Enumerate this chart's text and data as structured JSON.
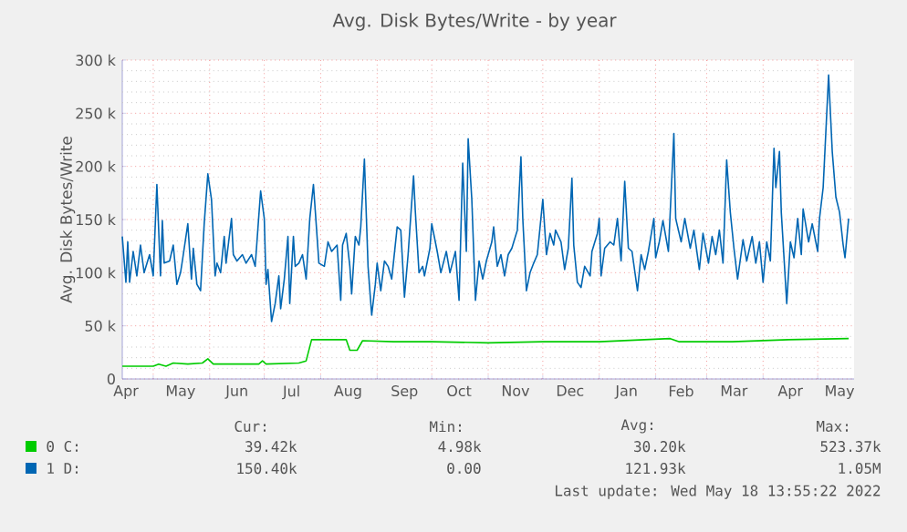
{
  "chart_data": {
    "type": "line",
    "title": "Avg. Disk Bytes/Write - by year",
    "ylabel": "Avg. Disk Bytes/Write",
    "xlim": [
      "2021-04-14",
      "2022-05-21"
    ],
    "ylim": [
      0,
      300000
    ],
    "xticks": [
      {
        "value": "2021-04-16",
        "label": "Apr"
      },
      {
        "value": "2021-05-01",
        "label": null
      },
      {
        "value": "2021-05-16",
        "label": "May"
      },
      {
        "value": "2021-06-01",
        "label": null
      },
      {
        "value": "2021-06-16",
        "label": "Jun"
      },
      {
        "value": "2021-07-01",
        "label": null
      },
      {
        "value": "2021-07-16",
        "label": "Jul"
      },
      {
        "value": "2021-08-01",
        "label": null
      },
      {
        "value": "2021-08-16",
        "label": "Aug"
      },
      {
        "value": "2021-09-01",
        "label": null
      },
      {
        "value": "2021-09-16",
        "label": "Sep"
      },
      {
        "value": "2021-10-01",
        "label": null
      },
      {
        "value": "2021-10-16",
        "label": "Oct"
      },
      {
        "value": "2021-11-01",
        "label": null
      },
      {
        "value": "2021-11-16",
        "label": "Nov"
      },
      {
        "value": "2021-12-01",
        "label": null
      },
      {
        "value": "2021-12-16",
        "label": "Dec"
      },
      {
        "value": "2022-01-01",
        "label": null
      },
      {
        "value": "2022-01-16",
        "label": "Jan"
      },
      {
        "value": "2022-02-01",
        "label": null
      },
      {
        "value": "2022-02-15",
        "label": "Feb"
      },
      {
        "value": "2022-03-01",
        "label": null
      },
      {
        "value": "2022-03-16",
        "label": "Mar"
      },
      {
        "value": "2022-04-01",
        "label": null
      },
      {
        "value": "2022-04-16",
        "label": "Apr"
      },
      {
        "value": "2022-05-01",
        "label": null
      },
      {
        "value": "2022-05-13",
        "label": "May"
      }
    ],
    "yticks": [
      {
        "value": 0,
        "label": "0"
      },
      {
        "value": 10000,
        "label": null
      },
      {
        "value": 20000,
        "label": null
      },
      {
        "value": 30000,
        "label": null
      },
      {
        "value": 40000,
        "label": null
      },
      {
        "value": 50000,
        "label": "50 k"
      },
      {
        "value": 60000,
        "label": null
      },
      {
        "value": 70000,
        "label": null
      },
      {
        "value": 80000,
        "label": null
      },
      {
        "value": 90000,
        "label": null
      },
      {
        "value": 100000,
        "label": "100 k"
      },
      {
        "value": 110000,
        "label": null
      },
      {
        "value": 120000,
        "label": null
      },
      {
        "value": 130000,
        "label": null
      },
      {
        "value": 140000,
        "label": null
      },
      {
        "value": 150000,
        "label": "150 k"
      },
      {
        "value": 160000,
        "label": null
      },
      {
        "value": 170000,
        "label": null
      },
      {
        "value": 180000,
        "label": null
      },
      {
        "value": 190000,
        "label": null
      },
      {
        "value": 200000,
        "label": "200 k"
      },
      {
        "value": 210000,
        "label": null
      },
      {
        "value": 220000,
        "label": null
      },
      {
        "value": 230000,
        "label": null
      },
      {
        "value": 240000,
        "label": null
      },
      {
        "value": 250000,
        "label": "250 k"
      },
      {
        "value": 260000,
        "label": null
      },
      {
        "value": 270000,
        "label": null
      },
      {
        "value": 280000,
        "label": null
      },
      {
        "value": 290000,
        "label": null
      },
      {
        "value": 300000,
        "label": "300 k"
      }
    ],
    "grid": true,
    "legend": "bottom",
    "series": [
      {
        "name": "0 C:",
        "color": "#00cc00",
        "x": [
          "2021-04-14",
          "2021-05-01",
          "2021-05-04",
          "2021-05-08",
          "2021-05-12",
          "2021-05-20",
          "2021-05-28",
          "2021-05-31",
          "2021-06-03",
          "2021-06-28",
          "2021-06-30",
          "2021-07-02",
          "2021-07-20",
          "2021-07-24",
          "2021-07-27",
          "2021-08-15",
          "2021-08-17",
          "2021-08-21",
          "2021-08-24",
          "2021-09-10",
          "2021-10-01",
          "2021-11-01",
          "2021-12-01",
          "2022-01-01",
          "2022-02-09",
          "2022-02-14",
          "2022-03-15",
          "2022-04-15",
          "2022-05-18"
        ],
        "values": [
          12000,
          12000,
          14000,
          12000,
          15000,
          14000,
          15000,
          19000,
          14000,
          14000,
          17000,
          14000,
          15000,
          17000,
          37000,
          37000,
          27000,
          27000,
          36000,
          35000,
          35000,
          34000,
          35000,
          35000,
          38000,
          35000,
          35000,
          37000,
          38000
        ]
      },
      {
        "name": "1 D:",
        "color": "#0066b3",
        "x": [
          "2021-04-14",
          "2021-04-16",
          "2021-04-17",
          "2021-04-18",
          "2021-04-20",
          "2021-04-22",
          "2021-04-24",
          "2021-04-26",
          "2021-04-29",
          "2021-05-01",
          "2021-05-03",
          "2021-05-05",
          "2021-05-06",
          "2021-05-07",
          "2021-05-10",
          "2021-05-12",
          "2021-05-14",
          "2021-05-16",
          "2021-05-17",
          "2021-05-20",
          "2021-05-22",
          "2021-05-23",
          "2021-05-25",
          "2021-05-27",
          "2021-05-29",
          "2021-05-31",
          "2021-06-02",
          "2021-06-04",
          "2021-06-05",
          "2021-06-07",
          "2021-06-09",
          "2021-06-10",
          "2021-06-13",
          "2021-06-14",
          "2021-06-16",
          "2021-06-19",
          "2021-06-21",
          "2021-06-24",
          "2021-06-26",
          "2021-06-29",
          "2021-07-01",
          "2021-07-02",
          "2021-07-03",
          "2021-07-05",
          "2021-07-07",
          "2021-07-09",
          "2021-07-10",
          "2021-07-12",
          "2021-07-14",
          "2021-07-15",
          "2021-07-17",
          "2021-07-18",
          "2021-07-20",
          "2021-07-22",
          "2021-07-24",
          "2021-07-26",
          "2021-07-28",
          "2021-07-30",
          "2021-07-31",
          "2021-08-03",
          "2021-08-05",
          "2021-08-07",
          "2021-08-10",
          "2021-08-12",
          "2021-08-13",
          "2021-08-15",
          "2021-08-17",
          "2021-08-18",
          "2021-08-20",
          "2021-08-22",
          "2021-08-23",
          "2021-08-25",
          "2021-08-27",
          "2021-08-29",
          "2021-08-31",
          "2021-09-01",
          "2021-09-03",
          "2021-09-05",
          "2021-09-07",
          "2021-09-09",
          "2021-09-12",
          "2021-09-14",
          "2021-09-16",
          "2021-09-18",
          "2021-09-21",
          "2021-09-22",
          "2021-09-24",
          "2021-09-26",
          "2021-09-27",
          "2021-09-30",
          "2021-10-01",
          "2021-10-04",
          "2021-10-06",
          "2021-10-09",
          "2021-10-11",
          "2021-10-14",
          "2021-10-16",
          "2021-10-18",
          "2021-10-20",
          "2021-10-21",
          "2021-10-23",
          "2021-10-25",
          "2021-10-27",
          "2021-10-29",
          "2021-10-31",
          "2021-11-03",
          "2021-11-04",
          "2021-11-06",
          "2021-11-08",
          "2021-11-10",
          "2021-11-12",
          "2021-11-14",
          "2021-11-17",
          "2021-11-19",
          "2021-11-20",
          "2021-11-22",
          "2021-11-24",
          "2021-11-26",
          "2021-11-28",
          "2021-12-01",
          "2021-12-03",
          "2021-12-05",
          "2021-12-07",
          "2021-12-08",
          "2021-12-11",
          "2021-12-13",
          "2021-12-15",
          "2021-12-17",
          "2021-12-18",
          "2021-12-20",
          "2021-12-22",
          "2021-12-24",
          "2021-12-27",
          "2021-12-28",
          "2021-12-31",
          "2022-01-01",
          "2022-01-02",
          "2022-01-04",
          "2022-01-07",
          "2022-01-09",
          "2022-01-11",
          "2022-01-13",
          "2022-01-15",
          "2022-01-17",
          "2022-01-19",
          "2022-01-22",
          "2022-01-24",
          "2022-01-26",
          "2022-01-28",
          "2022-01-31",
          "2022-02-01",
          "2022-02-03",
          "2022-02-05",
          "2022-02-08",
          "2022-02-11",
          "2022-02-12",
          "2022-02-15",
          "2022-02-17",
          "2022-02-20",
          "2022-02-22",
          "2022-02-25",
          "2022-02-27",
          "2022-03-02",
          "2022-03-04",
          "2022-03-06",
          "2022-03-08",
          "2022-03-10",
          "2022-03-12",
          "2022-03-14",
          "2022-03-16",
          "2022-03-18",
          "2022-03-21",
          "2022-03-23",
          "2022-03-26",
          "2022-03-28",
          "2022-03-30",
          "2022-04-01",
          "2022-04-03",
          "2022-04-05",
          "2022-04-07",
          "2022-04-08",
          "2022-04-10",
          "2022-04-11",
          "2022-04-14",
          "2022-04-16",
          "2022-04-18",
          "2022-04-20",
          "2022-04-22",
          "2022-04-23",
          "2022-04-26",
          "2022-04-28",
          "2022-05-01",
          "2022-05-02",
          "2022-05-04",
          "2022-05-07",
          "2022-05-09",
          "2022-05-11",
          "2022-05-13",
          "2022-05-15",
          "2022-05-16",
          "2022-05-18"
        ],
        "values": [
          134000,
          91000,
          129000,
          91000,
          120000,
          97000,
          126000,
          100000,
          117000,
          97000,
          183000,
          97000,
          149000,
          109000,
          111000,
          126000,
          89000,
          100000,
          111000,
          146000,
          94000,
          123000,
          89000,
          83000,
          146000,
          193000,
          169000,
          97000,
          109000,
          100000,
          134000,
          109000,
          151000,
          117000,
          111000,
          117000,
          109000,
          117000,
          106000,
          177000,
          151000,
          89000,
          103000,
          54000,
          71000,
          97000,
          66000,
          94000,
          134000,
          71000,
          134000,
          106000,
          109000,
          117000,
          94000,
          151000,
          183000,
          134000,
          109000,
          106000,
          129000,
          120000,
          126000,
          74000,
          126000,
          137000,
          106000,
          80000,
          134000,
          126000,
          143000,
          207000,
          106000,
          60000,
          89000,
          109000,
          83000,
          111000,
          106000,
          94000,
          143000,
          140000,
          77000,
          117000,
          191000,
          157000,
          100000,
          106000,
          97000,
          123000,
          146000,
          120000,
          100000,
          120000,
          100000,
          120000,
          74000,
          203000,
          120000,
          226000,
          169000,
          74000,
          111000,
          94000,
          111000,
          129000,
          143000,
          106000,
          117000,
          97000,
          117000,
          123000,
          140000,
          209000,
          151000,
          83000,
          100000,
          109000,
          117000,
          169000,
          117000,
          137000,
          126000,
          140000,
          129000,
          103000,
          123000,
          189000,
          126000,
          91000,
          86000,
          106000,
          97000,
          120000,
          137000,
          151000,
          97000,
          123000,
          129000,
          126000,
          151000,
          111000,
          186000,
          123000,
          120000,
          83000,
          117000,
          103000,
          120000,
          151000,
          114000,
          129000,
          149000,
          120000,
          231000,
          151000,
          129000,
          151000,
          123000,
          140000,
          103000,
          137000,
          109000,
          134000,
          117000,
          140000,
          109000,
          206000,
          157000,
          123000,
          94000,
          131000,
          111000,
          134000,
          109000,
          129000,
          91000,
          129000,
          111000,
          217000,
          180000,
          214000,
          157000,
          71000,
          129000,
          114000,
          151000,
          117000,
          160000,
          129000,
          146000,
          120000,
          151000,
          180000,
          286000,
          214000,
          171000,
          157000,
          126000,
          114000,
          151000
        ]
      }
    ],
    "annotations": [
      "Cur:",
      "Min:",
      "Avg:",
      "Max:",
      "39.42k",
      "4.98k",
      "30.20k",
      "523.37k",
      "150.40k",
      "0.00",
      "121.93k",
      "1.05M",
      "Last update: Wed May 18 13:55:22 2022"
    ]
  }
}
